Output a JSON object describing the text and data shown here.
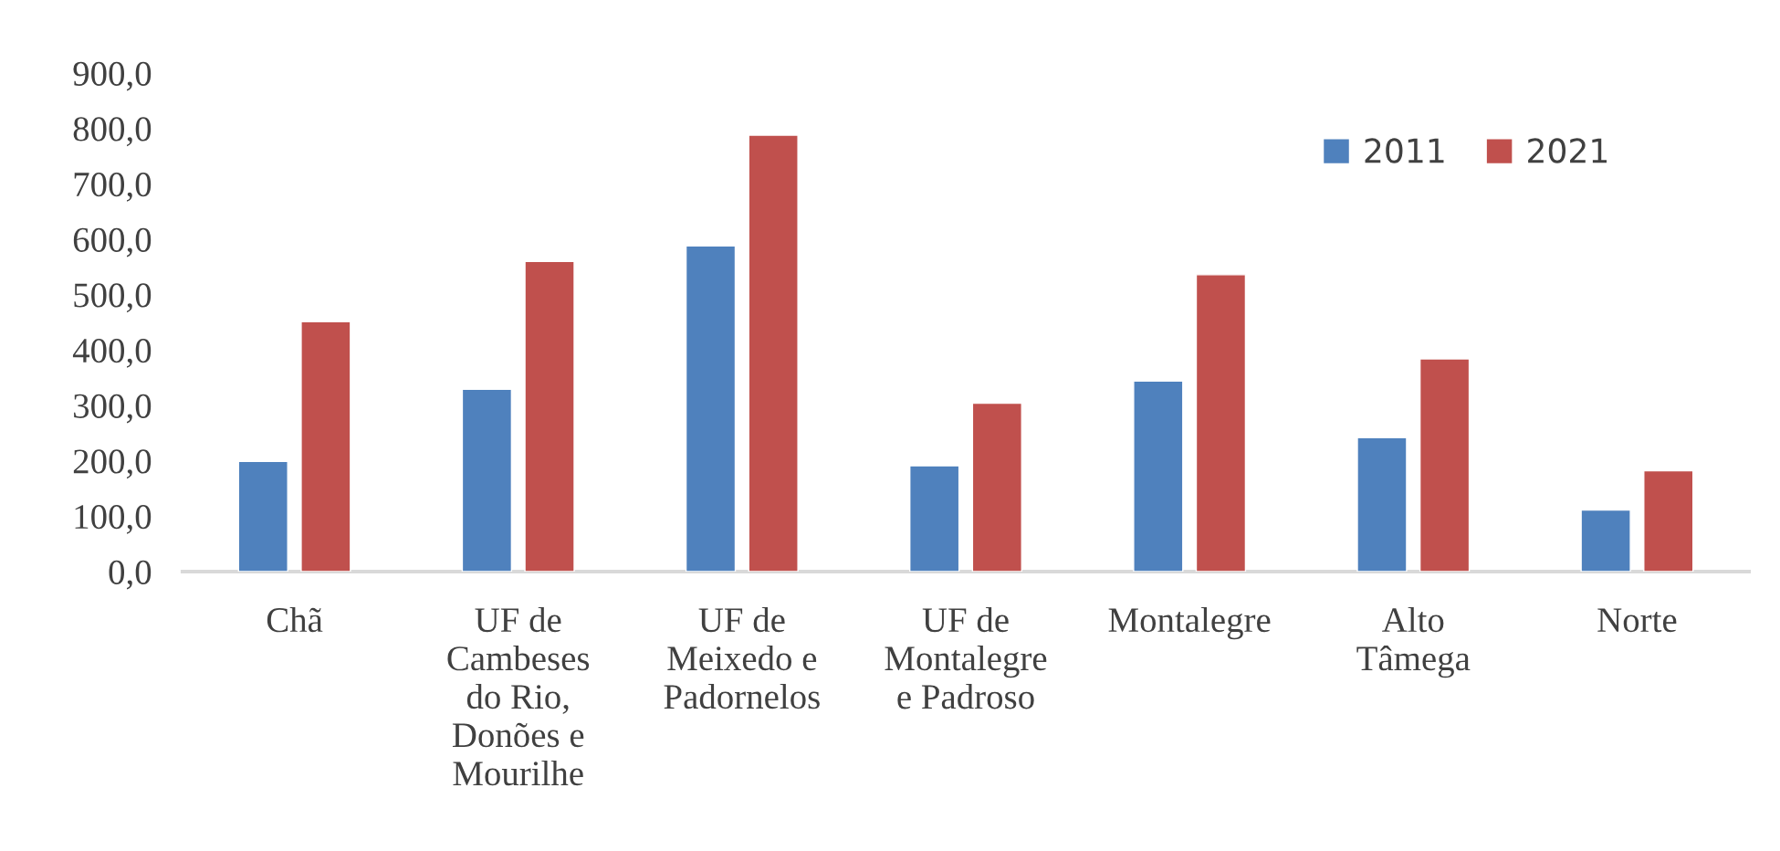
{
  "chart_data": {
    "type": "bar",
    "categories": [
      "Chã",
      "UF de\nCambeses\ndo Rio,\nDonões e\nMourilhe",
      "UF de\nMeixedo e\nPadornelos",
      "UF de\nMontalegre\ne Padroso",
      "Montalegre",
      "Alto\nTâmega",
      "Norte"
    ],
    "series": [
      {
        "name": "2011",
        "color": "#4f81bd",
        "values": [
          199,
          329,
          588,
          191,
          344,
          242,
          111
        ]
      },
      {
        "name": "2021",
        "color": "#c0504d",
        "values": [
          451,
          560,
          788,
          304,
          536,
          384,
          182
        ]
      }
    ],
    "ylim": [
      0,
      900
    ],
    "yticks": [
      {
        "value": 0,
        "label": "0,0"
      },
      {
        "value": 100,
        "label": "100,0"
      },
      {
        "value": 200,
        "label": "200,0"
      },
      {
        "value": 300,
        "label": "300,0"
      },
      {
        "value": 400,
        "label": "400,0"
      },
      {
        "value": 500,
        "label": "500,0"
      },
      {
        "value": 600,
        "label": "600,0"
      },
      {
        "value": 700,
        "label": "700,0"
      },
      {
        "value": 800,
        "label": "800,0"
      },
      {
        "value": 900,
        "label": "900,0"
      }
    ],
    "grid": false,
    "legend": "top right"
  }
}
